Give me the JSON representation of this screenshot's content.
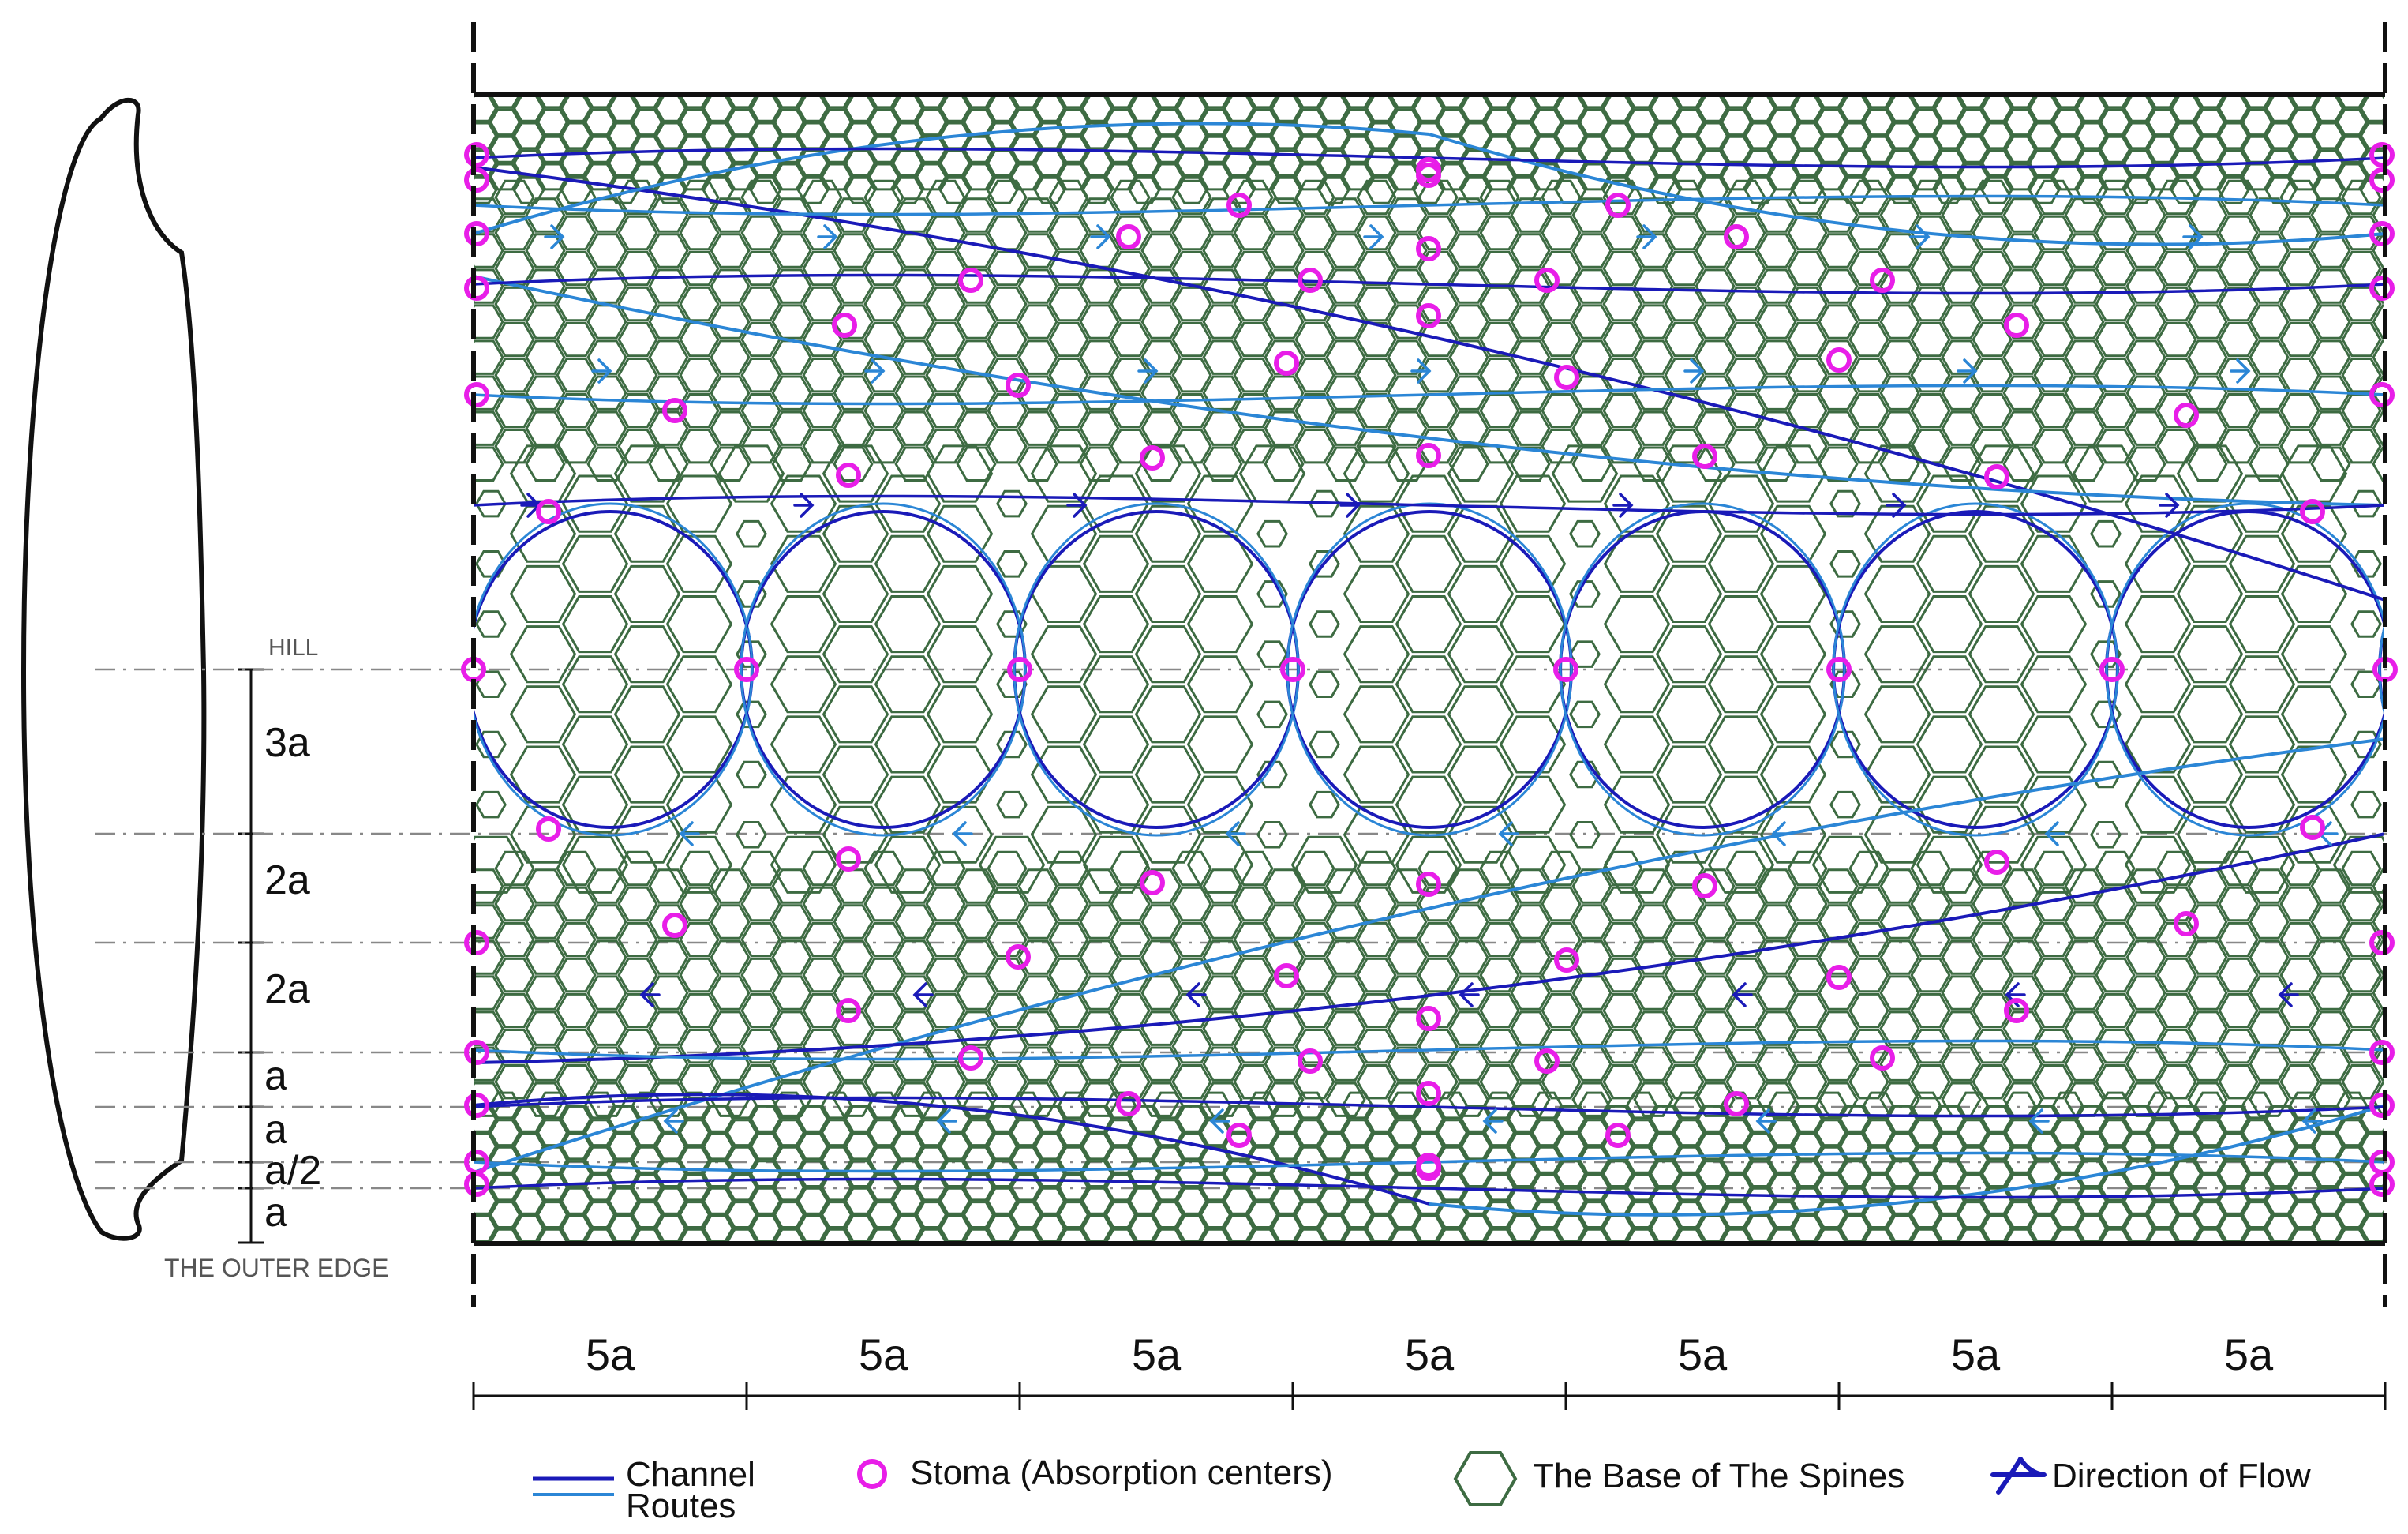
{
  "profile": {
    "hill_label": "HILL",
    "edge_label": "THE OUTER EDGE",
    "dims": [
      "3a",
      "2a",
      "2a",
      "a",
      "a",
      "a/2",
      "a"
    ]
  },
  "bottom": {
    "spans": [
      "5a",
      "5a",
      "5a",
      "5a",
      "5a",
      "5a",
      "5a"
    ]
  },
  "legend": {
    "channel_label": "Channel",
    "routes_label": "Routes",
    "stoma_label": "Stoma (Absorption centers)",
    "spines_label": "The Base of The Spines",
    "flow_label": "Direction of Flow"
  },
  "colors": {
    "dark_channel": "#1a1ab8",
    "light_channel": "#2b86d6",
    "stoma": "#e81ee8",
    "spine_hex": "#3d6b42",
    "axis": "#111111",
    "guide": "#888888"
  },
  "icons": {
    "stoma": "magenta-ring",
    "spine": "green-hexagon",
    "flow": "blue-arrowhead"
  }
}
